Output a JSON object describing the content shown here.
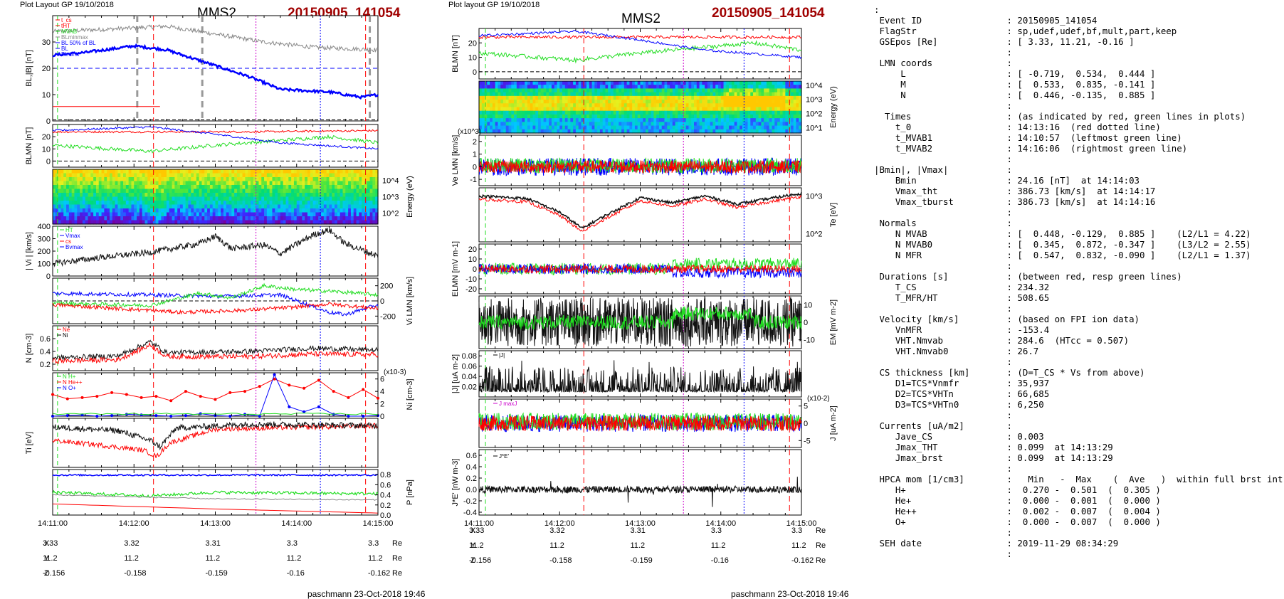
{
  "header": {
    "left_plot_layout": "Plot Layout GP 19/10/2018",
    "mid_plot_layout": "Plot layout GP 19/10/2018",
    "spacecraft": "MMS2",
    "event_id": "20150905_141054"
  },
  "footer": {
    "left": "paschmann 23-Oct-2018 19:46",
    "mid": "paschmann 23-Oct-2018 19:46"
  },
  "colors": {
    "black": "#000000",
    "red": "#ff0000",
    "green": "#22dd22",
    "blue": "#0000ff",
    "gray": "#888888",
    "magenta": "#cc00cc",
    "dark_red": "#a00000"
  },
  "time_axis": {
    "ticks": [
      "14:11:00",
      "14:12:00",
      "14:13:00",
      "14:14:00",
      "14:15:00"
    ]
  },
  "coords": {
    "x": {
      "label": "X",
      "values": [
        "3.33",
        "3.32",
        "3.31",
        "3.3",
        "3.3"
      ],
      "unit": "Re"
    },
    "y": {
      "label": "Y",
      "values": [
        "11.2",
        "11.2",
        "11.2",
        "11.2",
        "11.2"
      ],
      "unit": "Re"
    },
    "z": {
      "label": "Z",
      "values": [
        "-0.156",
        "-0.158",
        "-0.159",
        "-0.16",
        "-0.162"
      ],
      "unit": "Re"
    }
  },
  "chart_data": [
    {
      "id": "L1",
      "type": "line",
      "ylabel": "BL,|B| [nT]",
      "ylim": [
        0,
        40
      ],
      "yticks": [
        "0",
        "10",
        "20",
        "30"
      ],
      "legend": [
        "t_cs",
        "tHT",
        "MVAB",
        "BLminmax",
        "BL 50% of BL",
        "BL",
        "BL brst"
      ],
      "series": [
        {
          "name": "|B|",
          "color": "gray"
        },
        {
          "name": "BL",
          "color": "blue"
        }
      ]
    },
    {
      "id": "L2",
      "type": "line",
      "ylabel": "BLMN [nT]",
      "ylim": [
        -5,
        30
      ],
      "yticks": [
        "0",
        "10",
        "20"
      ],
      "series": [
        {
          "name": "BL",
          "color": "blue"
        },
        {
          "name": "BM",
          "color": "green"
        },
        {
          "name": "BN",
          "color": "red"
        }
      ]
    },
    {
      "id": "L3",
      "type": "heatmap",
      "ylabel": "Energy (eV)",
      "yticks": [
        "10^2",
        "10^3",
        "10^4"
      ]
    },
    {
      "id": "L4",
      "type": "line",
      "ylabel": "| Vi | [km/s]",
      "ylim": [
        0,
        400
      ],
      "yticks": [
        "0",
        "100",
        "200",
        "300",
        "400"
      ],
      "legend": [
        "HT",
        "Vmax",
        "cs",
        "Bvmax"
      ]
    },
    {
      "id": "L5",
      "type": "line",
      "ylabel": "Vi LMN [km/s]",
      "ylim": [
        -300,
        300
      ],
      "yticks": [
        "-200",
        "0",
        "200"
      ],
      "series": [
        {
          "name": "VL",
          "color": "blue"
        },
        {
          "name": "VM",
          "color": "green"
        },
        {
          "name": "VN",
          "color": "red"
        }
      ]
    },
    {
      "id": "L6",
      "type": "line",
      "ylabel": "N [cm-3]",
      "ylim": [
        0.1,
        0.8
      ],
      "yticks": [
        "0.2",
        "0.4",
        "0.6"
      ],
      "series": [
        {
          "name": "Ne",
          "color": "red"
        },
        {
          "name": "Ni",
          "color": "black"
        }
      ]
    },
    {
      "id": "L7",
      "type": "line",
      "ylabel": "Ni [cm-3]",
      "exponent": "(x10-3)",
      "ylim": [
        0,
        7
      ],
      "yticks": [
        "0",
        "2",
        "4",
        "6"
      ],
      "series": [
        {
          "name": "H+",
          "color": "green"
        },
        {
          "name": "He++",
          "color": "red"
        },
        {
          "name": "O+",
          "color": "blue"
        }
      ]
    },
    {
      "id": "L8",
      "type": "line",
      "ylabel": "Ti [eV]",
      "series": [
        {
          "name": "Ti",
          "color": "black"
        },
        {
          "name": "Te",
          "color": "red"
        }
      ]
    },
    {
      "id": "L9",
      "type": "line",
      "ylabel": "P [nPa]",
      "ylim": [
        0,
        0.9
      ],
      "yticks": [
        "0.0",
        "0.2",
        "0.4",
        "0.6",
        "0.8"
      ],
      "series": [
        {
          "name": "P",
          "color": "blue"
        },
        {
          "name": "Pi",
          "color": "green"
        },
        {
          "name": "Pe",
          "color": "gray"
        },
        {
          "name": "PB",
          "color": "red"
        }
      ]
    },
    {
      "id": "M1",
      "type": "line",
      "ylabel": "BLMN [nT]",
      "ylim": [
        -5,
        30
      ],
      "yticks": [
        "0",
        "10",
        "20"
      ],
      "series": [
        {
          "name": "BL",
          "color": "blue"
        },
        {
          "name": "BM",
          "color": "green"
        },
        {
          "name": "BN",
          "color": "red"
        }
      ]
    },
    {
      "id": "M2",
      "type": "heatmap",
      "ylabel": "Energy (eV)",
      "yticks": [
        "10^1",
        "10^2",
        "10^3",
        "10^4"
      ]
    },
    {
      "id": "M3",
      "type": "line",
      "ylabel": "Ve LMN [km/s]",
      "exponent": "(x10^3)",
      "ylim": [
        -1.5,
        2.5
      ],
      "yticks": [
        "-1",
        "0",
        "1",
        "2"
      ],
      "series": [
        {
          "name": "VL",
          "color": "blue"
        },
        {
          "name": "VM",
          "color": "green"
        },
        {
          "name": "VN",
          "color": "red"
        }
      ]
    },
    {
      "id": "M4",
      "type": "line",
      "ylabel": "Te [eV]",
      "yticks": [
        "10^2",
        "10^3"
      ],
      "series": [
        {
          "name": "Ti",
          "color": "red"
        },
        {
          "name": "Te",
          "color": "black"
        }
      ]
    },
    {
      "id": "M5",
      "type": "line",
      "ylabel": "ELMN [mV m-1]",
      "ylim": [
        -25,
        25
      ],
      "yticks": [
        "-20",
        "-10",
        "0",
        "10",
        "20"
      ],
      "series": [
        {
          "name": "EL",
          "color": "blue"
        },
        {
          "name": "EM",
          "color": "green"
        },
        {
          "name": "EN",
          "color": "red"
        }
      ]
    },
    {
      "id": "M6",
      "type": "line",
      "ylabel": "EM [mV m-2]",
      "ylim": [
        -15,
        15
      ],
      "yticks": [
        "-10",
        "0",
        "10"
      ]
    },
    {
      "id": "M7",
      "type": "line",
      "ylabel": "|J| [uA m-2]",
      "ylim": [
        0,
        0.09
      ],
      "yticks": [
        "0.02",
        "0.04",
        "0.06",
        "0.08"
      ],
      "legend": [
        "|J|"
      ]
    },
    {
      "id": "M8",
      "type": "line",
      "ylabel": "J [uA m-2]",
      "exponent": "(x10-2)",
      "ylim": [
        -7,
        7
      ],
      "yticks": [
        "-5",
        "0",
        "5"
      ],
      "legend": [
        "J maxJ"
      ]
    },
    {
      "id": "M9",
      "type": "line",
      "ylabel": "J*E' [nW m-3]",
      "ylim": [
        -0.45,
        0.7
      ],
      "yticks": [
        "-0.4",
        "-0.2",
        "0.0",
        "0.2",
        "0.4",
        "0.6"
      ],
      "legend": [
        "J*E'"
      ]
    }
  ],
  "info_lines": [
    ":",
    " Event ID                : 20150905_141054",
    " FlagStr                 : sp,udef,udef,bf,mult,part,keep",
    " GSEpos [Re]             : [ 3.33, 11.21, -0.16 ]",
    "                         :",
    " LMN coords              :",
    "     L                   : [ -0.719,  0.534,  0.444 ]",
    "     M                   : [  0.533,  0.835, -0.141 ]",
    "     N                   : [  0.446, -0.135,  0.885 ]",
    "                         :",
    "  Times                  : (as indicated by red, green lines in plots)",
    "    t_0                  : 14:13:16  (red dotted line)",
    "    t_MVAB1              : 14:10:57  (leftmost green line)",
    "    t_MVAB2              : 14:16:06  (rightmost green line)",
    "                         :",
    "|Bmin|, |Vmax|           :",
    "    Bmin                 : 24.16 [nT]  at 14:14:03",
    "    Vmax_tht             : 386.73 [km/s]  at 14:14:17",
    "    Vmax_tburst          : 386.73 [km/s]  at 14:14:16",
    "                         :",
    " Normals                 :",
    "    N MVAB               : [  0.448, -0.129,  0.885 ]    (L2/L1 = 4.22)",
    "    N MVAB0              : [  0.345,  0.872, -0.347 ]    (L3/L2 = 2.55)",
    "    N MFR                : [  0.547,  0.832, -0.090 ]    (L2/L1 = 1.37)",
    "                         :",
    " Durations [s]           : (between red, resp green lines)",
    "    T_CS                 : 234.32",
    "    T_MFR/HT             : 508.65",
    "                         :",
    " Velocity [km/s]         : (based on FPI ion data)",
    "    VnMFR                : -153.4",
    "    VHT.Nmvab            : 284.6  (HTcc = 0.507)",
    "    VHT.Nmvab0           : 26.7",
    "                         :",
    " CS thickness [km]       : (D=T_CS * Vs from above)",
    "    D1=TCS*Vnmfr         : 35,937",
    "    D2=TCS*VHTn          : 66,685",
    "    D3=TCS*VHTn0         : 6,250",
    "                         :",
    " Currents [uA/m2]        :",
    "    Jave_CS              : 0.003",
    "    Jmax_THT             : 0.099  at 14:13:29",
    "    Jmax_brst            : 0.099  at 14:13:29",
    "                         :",
    " HPCA mom [1/cm3]        :   Min   -  Max    (  Ave   )  within full brst int",
    "    H+                   :  0.270 -  0.501  (  0.305 )",
    "    He+                  :  0.000 -  0.001  (  0.000 )",
    "    He++                 :  0.002 -  0.007  (  0.004 )",
    "    O+                   :  0.000 -  0.007  (  0.000 )",
    "                         :",
    " SEH date                : 2019-11-29 08:34:29",
    "                         :"
  ]
}
